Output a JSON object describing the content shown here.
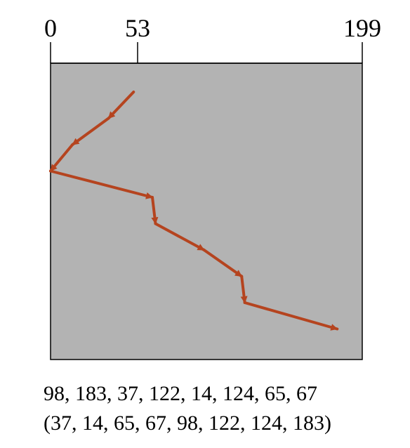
{
  "chart_data": {
    "type": "line",
    "xlim": [
      0,
      199
    ],
    "x_ticks": [
      "0",
      "53",
      "199"
    ],
    "head_start": 53,
    "path": [
      53,
      37,
      14,
      0,
      65,
      67,
      98,
      122,
      124,
      183
    ],
    "colors": {
      "panel": "#b3b3b3",
      "path": "#b5441f",
      "axis": "#000000"
    }
  },
  "caption": {
    "request_queue": "98, 183, 37, 122, 14, 124, 65, 67",
    "service_order": "(37, 14, 65, 67, 98, 122, 124, 183)"
  }
}
